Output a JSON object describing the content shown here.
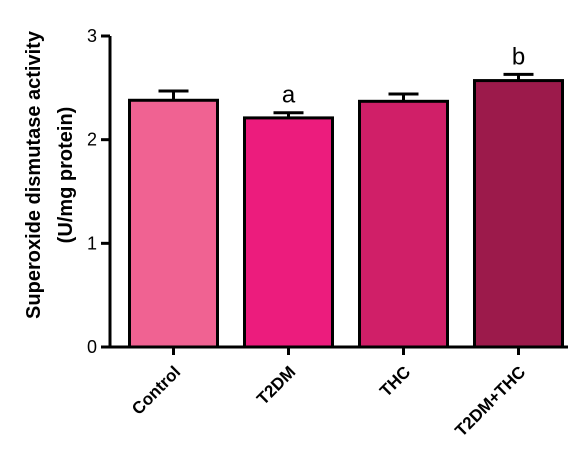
{
  "chart_data": {
    "type": "bar",
    "title": "",
    "xlabel": "",
    "ylabel_line1": "Superoxide dismutase activity",
    "ylabel_line2": "(U/mg protein)",
    "ylim": [
      0,
      3
    ],
    "yticks": [
      "0",
      "1",
      "2",
      "3"
    ],
    "categories": [
      "Control",
      "T2DM",
      "THC",
      "T2DM+THC"
    ],
    "values": [
      2.38,
      2.21,
      2.37,
      2.57
    ],
    "errors": [
      0.09,
      0.05,
      0.07,
      0.06
    ],
    "annotations": [
      "",
      "a",
      "",
      "b"
    ],
    "colors": [
      "#f06292",
      "#ec1c7d",
      "#d01f68",
      "#9c1a4b"
    ],
    "grid": false,
    "legend": "none"
  }
}
